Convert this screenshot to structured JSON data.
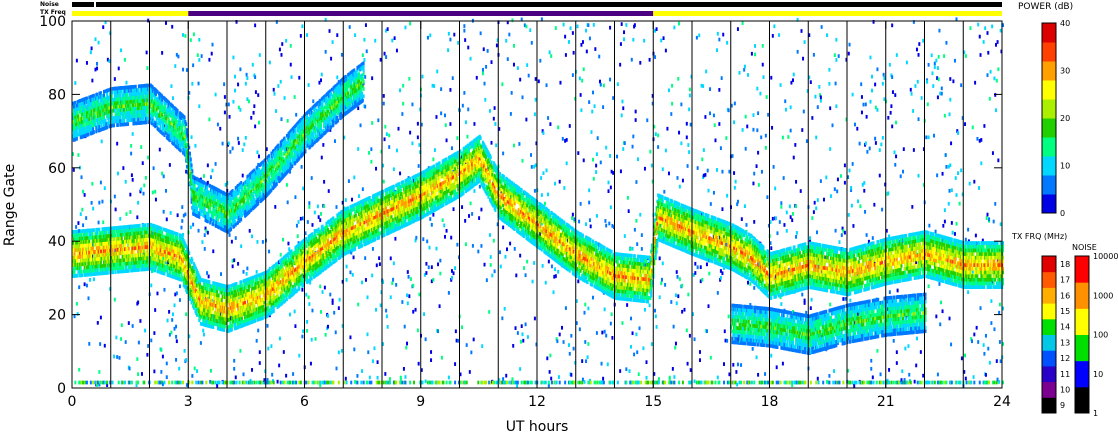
{
  "chart_data": [
    {
      "type": "heatmap",
      "xlabel": "UT hours",
      "ylabel": "Range Gate",
      "xlim": [
        0,
        24
      ],
      "ylim": [
        0,
        100
      ],
      "x_ticks": [
        "0",
        "3",
        "6",
        "9",
        "12",
        "15",
        "18",
        "21",
        "24"
      ],
      "y_ticks": [
        "0",
        "20",
        "40",
        "60",
        "80",
        "100"
      ],
      "grid": "vertical lines every hour",
      "top_bars": {
        "noise_label": "Noise",
        "txfreq_label": "TX Freq",
        "segments": [
          {
            "from": 0,
            "to": 3,
            "color": "#ffff00"
          },
          {
            "from": 3,
            "to": 15,
            "color": "#4b0082"
          },
          {
            "from": 15,
            "to": 24,
            "color": "#ffff00"
          }
        ]
      },
      "echo_bands": [
        {
          "name": "lower band",
          "points": [
            [
              0,
              36
            ],
            [
              1,
              37
            ],
            [
              2,
              38
            ],
            [
              2.8,
              35
            ],
            [
              3.3,
              23
            ],
            [
              4,
              21
            ],
            [
              5,
              25
            ],
            [
              6,
              34
            ],
            [
              7,
              42
            ],
            [
              8,
              47
            ],
            [
              9,
              52
            ],
            [
              10,
              58
            ],
            [
              10.5,
              62
            ],
            [
              11,
              52
            ],
            [
              12,
              44
            ],
            [
              13,
              36
            ],
            [
              14,
              30
            ],
            [
              14.9,
              29
            ],
            [
              15.1,
              46
            ],
            [
              16,
              42
            ],
            [
              17,
              38
            ],
            [
              17.5,
              35
            ],
            [
              18,
              30
            ],
            [
              19,
              33
            ],
            [
              20,
              31
            ],
            [
              21,
              34
            ],
            [
              22,
              36
            ],
            [
              23,
              33
            ],
            [
              24,
              33
            ]
          ]
        },
        {
          "name": "upper band",
          "points": [
            [
              0,
              72
            ],
            [
              1,
              76
            ],
            [
              2,
              77
            ],
            [
              2.9,
              68
            ],
            [
              3.1,
              52
            ],
            [
              4,
              47
            ],
            [
              5,
              57
            ],
            [
              6,
              69
            ],
            [
              7,
              79
            ],
            [
              7.5,
              83
            ]
          ]
        },
        {
          "name": "secondary band",
          "points": [
            [
              17,
              17
            ],
            [
              18,
              16
            ],
            [
              19,
              14
            ],
            [
              20,
              17
            ],
            [
              21,
              19
            ],
            [
              22,
              20
            ]
          ]
        }
      ]
    },
    {
      "type": "colorbar",
      "title": "POWER (dB)",
      "ticks": [
        "0",
        "10",
        "20",
        "30",
        "40"
      ],
      "colors": [
        "#0000e6",
        "#0078ff",
        "#00d8ff",
        "#00ff80",
        "#22d000",
        "#aaee00",
        "#ffff00",
        "#ff9f00",
        "#ff4000",
        "#dd0000"
      ]
    },
    {
      "type": "colorbar",
      "title": "TX FRQ (MHz)",
      "ticks": [
        "9",
        "10",
        "11",
        "12",
        "13",
        "14",
        "15",
        "16",
        "17",
        "18"
      ],
      "colors": [
        "#000000",
        "#7b0090",
        "#2a00c8",
        "#0050ff",
        "#00c8e6",
        "#00e000",
        "#ffff00",
        "#ffae00",
        "#ff5a00",
        "#e00000"
      ]
    },
    {
      "type": "colorbar",
      "title": "NOISE",
      "ticks": [
        "1",
        "10",
        "100",
        "1000",
        "10000"
      ],
      "colors": [
        "#000000",
        "#0000ff",
        "#00e000",
        "#ffff00",
        "#ff9000",
        "#ff0000"
      ]
    }
  ]
}
